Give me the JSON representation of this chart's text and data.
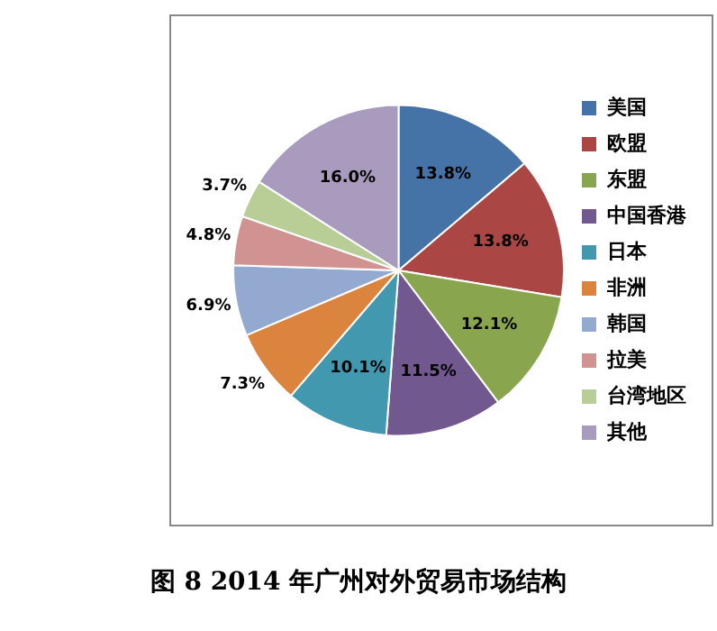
{
  "chart_data": {
    "type": "pie",
    "title": "图 8 2014 年广州对外贸易市场结构",
    "categories": [
      "美国",
      "欧盟",
      "东盟",
      "中国香港",
      "日本",
      "非洲",
      "韩国",
      "拉美",
      "台湾地区",
      "其他"
    ],
    "values": [
      13.8,
      13.8,
      12.1,
      11.5,
      10.1,
      7.3,
      6.9,
      4.8,
      3.7,
      16.0
    ],
    "value_labels": [
      "13.8%",
      "13.8%",
      "12.1%",
      "11.5%",
      "10.1%",
      "7.3%",
      "6.9%",
      "4.8%",
      "3.7%",
      "16.0%"
    ],
    "colors": [
      "#4572a7",
      "#aa4643",
      "#89a54e",
      "#71588f",
      "#4198af",
      "#db843d",
      "#93a9cf",
      "#d19392",
      "#b9cd96",
      "#a99bbd"
    ],
    "legend": "right"
  }
}
